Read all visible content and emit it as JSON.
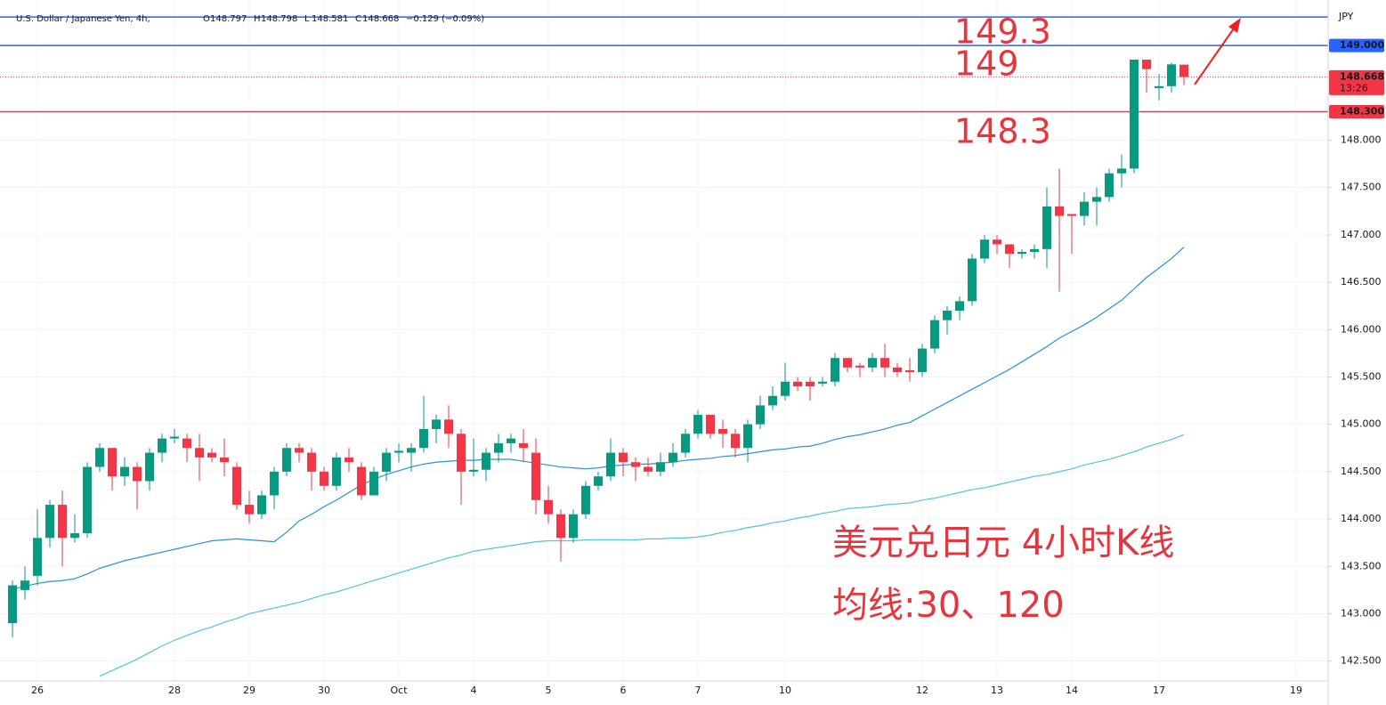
{
  "chart_data": {
    "type": "candlestick",
    "header": {
      "symbol": "U.S. Dollar / Japanese Yen, 4h,",
      "ohlc": [
        {
          "key": "O",
          "value": 148.797
        },
        {
          "key": "H",
          "value": 148.798
        },
        {
          "key": "L",
          "value": 148.581
        },
        {
          "key": "C",
          "value": 148.668
        }
      ],
      "change": "−0.129 (−0.09%)"
    },
    "axis_unit": "JPY",
    "annotations": [
      "149.3",
      "149",
      "148.3",
      "美元兑日元 4小时K线",
      "均线:30、120"
    ],
    "categories": [
      null,
      null,
      "26",
      null,
      null,
      null,
      null,
      null,
      null,
      null,
      null,
      null,
      null,
      "28",
      null,
      null,
      null,
      null,
      null,
      "29",
      null,
      null,
      null,
      null,
      null,
      "30",
      null,
      null,
      null,
      null,
      null,
      "Oct",
      null,
      null,
      null,
      null,
      null,
      "4",
      null,
      null,
      null,
      null,
      null,
      "5",
      null,
      null,
      null,
      null,
      null,
      "6",
      null,
      null,
      null,
      null,
      null,
      "7",
      null,
      null,
      null,
      null,
      null,
      null,
      "10",
      null,
      null,
      null,
      null,
      null,
      null,
      null,
      null,
      null,
      null,
      "12",
      null,
      null,
      null,
      null,
      null,
      "13",
      null,
      null,
      null,
      null,
      null,
      "14",
      null,
      null,
      null,
      null,
      null,
      null,
      "17",
      null,
      null,
      null,
      null,
      null,
      null,
      null,
      null,
      null,
      null,
      "19"
    ],
    "open": [
      142.9,
      143.25,
      143.4,
      143.8,
      144.15,
      143.8,
      143.85,
      144.55,
      144.75,
      144.45,
      144.55,
      144.4,
      144.7,
      144.85,
      144.85,
      144.75,
      144.7,
      144.65,
      144.55,
      144.15,
      144.05,
      144.25,
      144.5,
      144.75,
      144.7,
      144.5,
      144.35,
      144.65,
      144.55,
      144.25,
      144.5,
      144.7,
      144.7,
      144.75,
      144.95,
      145.05,
      144.9,
      144.5,
      144.52,
      144.7,
      144.8,
      144.8,
      144.7,
      144.2,
      144.05,
      143.8,
      144.05,
      144.35,
      144.45,
      144.7,
      144.6,
      144.55,
      144.5,
      144.6,
      144.7,
      144.9,
      145.1,
      144.95,
      144.9,
      144.75,
      145.0,
      145.2,
      145.3,
      145.45,
      145.45,
      145.43,
      145.45,
      145.7,
      145.62,
      145.6,
      145.7,
      145.6,
      145.57,
      145.55,
      145.8,
      146.1,
      146.2,
      146.3,
      146.75,
      146.95,
      146.9,
      146.8,
      146.82,
      146.85,
      147.3,
      147.22,
      147.2,
      147.35,
      147.4,
      147.65,
      147.7,
      148.85,
      148.55,
      148.57,
      148.797,
      null,
      null,
      null,
      null,
      null,
      null,
      null,
      null,
      null
    ],
    "high": [
      143.35,
      143.5,
      144.1,
      144.2,
      144.3,
      144.05,
      144.6,
      144.8,
      144.75,
      144.65,
      144.6,
      144.75,
      144.9,
      144.95,
      144.9,
      144.9,
      144.75,
      144.85,
      144.6,
      144.3,
      144.3,
      144.55,
      144.8,
      144.8,
      144.75,
      144.55,
      144.7,
      144.75,
      144.6,
      144.55,
      144.75,
      144.8,
      144.8,
      145.3,
      145.1,
      145.2,
      144.95,
      144.85,
      144.75,
      144.9,
      144.9,
      144.95,
      144.85,
      144.35,
      144.1,
      144.1,
      144.4,
      144.5,
      144.85,
      144.75,
      144.65,
      144.65,
      144.7,
      144.8,
      144.95,
      145.15,
      145.1,
      145.05,
      144.95,
      145.05,
      145.3,
      145.4,
      145.65,
      145.5,
      145.5,
      145.5,
      145.75,
      145.7,
      145.65,
      145.75,
      145.85,
      145.65,
      145.7,
      145.85,
      146.15,
      146.25,
      146.35,
      146.8,
      147.0,
      147.0,
      146.9,
      146.85,
      146.9,
      147.5,
      147.7,
      147.22,
      147.45,
      147.5,
      147.7,
      147.85,
      148.85,
      148.85,
      148.7,
      148.82,
      148.798,
      null,
      null,
      null,
      null,
      null,
      null,
      null,
      null,
      null
    ],
    "low": [
      142.75,
      143.15,
      143.3,
      143.7,
      143.5,
      143.75,
      143.8,
      144.5,
      144.3,
      144.35,
      144.1,
      144.3,
      144.6,
      144.8,
      144.6,
      144.4,
      144.6,
      144.45,
      144.1,
      143.95,
      144.0,
      144.1,
      144.45,
      144.6,
      144.3,
      144.3,
      144.3,
      144.5,
      144.2,
      144.25,
      144.4,
      144.6,
      144.5,
      144.7,
      144.8,
      144.75,
      144.15,
      144.45,
      144.4,
      144.6,
      144.7,
      144.6,
      144.05,
      143.95,
      143.55,
      143.75,
      144.0,
      144.3,
      144.4,
      144.45,
      144.4,
      144.45,
      144.45,
      144.55,
      144.65,
      144.85,
      144.85,
      144.75,
      144.65,
      144.6,
      144.95,
      145.15,
      145.25,
      145.35,
      145.25,
      145.4,
      145.4,
      145.55,
      145.5,
      145.55,
      145.5,
      145.5,
      145.45,
      145.5,
      145.75,
      145.95,
      146.1,
      146.25,
      146.7,
      146.8,
      146.65,
      146.75,
      146.75,
      146.65,
      146.4,
      146.8,
      147.1,
      147.1,
      147.35,
      147.5,
      147.65,
      148.5,
      148.42,
      148.5,
      148.581,
      null,
      null,
      null,
      null,
      null,
      null,
      null,
      null,
      null
    ],
    "close": [
      143.3,
      143.35,
      143.8,
      144.15,
      143.8,
      143.85,
      144.55,
      144.75,
      144.45,
      144.55,
      144.4,
      144.7,
      144.85,
      144.87,
      144.75,
      144.65,
      144.65,
      144.6,
      144.15,
      144.05,
      144.25,
      144.5,
      144.75,
      144.7,
      144.5,
      144.35,
      144.65,
      144.6,
      144.25,
      144.5,
      144.7,
      144.72,
      144.75,
      144.95,
      145.05,
      144.9,
      144.5,
      144.52,
      144.7,
      144.8,
      144.85,
      144.75,
      144.2,
      144.05,
      143.8,
      144.05,
      144.35,
      144.45,
      144.7,
      144.6,
      144.55,
      144.5,
      144.6,
      144.7,
      144.9,
      145.1,
      144.9,
      144.9,
      144.75,
      145.0,
      145.2,
      145.3,
      145.45,
      145.4,
      145.4,
      145.45,
      145.7,
      145.6,
      145.6,
      145.7,
      145.6,
      145.55,
      145.55,
      145.8,
      146.1,
      146.2,
      146.3,
      146.75,
      146.95,
      146.9,
      146.8,
      146.82,
      146.85,
      147.3,
      147.2,
      147.2,
      147.35,
      147.4,
      147.65,
      147.7,
      148.85,
      148.75,
      148.57,
      148.8,
      148.668,
      null,
      null,
      null,
      null,
      null,
      null,
      null,
      null,
      null
    ],
    "up_color": "#089981",
    "down_color": "#f23645",
    "series": [
      {
        "color": "#2a8fe0",
        "values": [
          143.26,
          143.29,
          143.32,
          143.34,
          143.35,
          143.37,
          143.42,
          143.48,
          143.52,
          143.56,
          143.59,
          143.62,
          143.65,
          143.68,
          143.71,
          143.74,
          143.77,
          143.78,
          143.79,
          143.78,
          143.77,
          143.76,
          143.86,
          143.98,
          144.05,
          144.13,
          144.2,
          144.28,
          144.36,
          144.42,
          144.47,
          144.51,
          144.55,
          144.58,
          144.6,
          144.61,
          144.62,
          144.62,
          144.63,
          144.63,
          144.63,
          144.61,
          144.59,
          144.57,
          144.55,
          144.54,
          144.53,
          144.54,
          144.56,
          144.57,
          144.58,
          144.58,
          144.59,
          144.6,
          144.62,
          144.63,
          144.64,
          144.66,
          144.67,
          144.69,
          144.71,
          144.73,
          144.74,
          144.76,
          144.77,
          144.8,
          144.84,
          144.87,
          144.89,
          144.92,
          144.95,
          144.99,
          145.02,
          145.09,
          145.16,
          145.23,
          145.3,
          145.37,
          145.44,
          145.51,
          145.58,
          145.66,
          145.74,
          145.82,
          145.91,
          145.98,
          146.05,
          146.13,
          146.22,
          146.31,
          146.43,
          146.55,
          146.65,
          146.75,
          146.87,
          null,
          null,
          null,
          null,
          null,
          null,
          null,
          null,
          null
        ]
      },
      {
        "color": "#4fc6d9",
        "values": [
          null,
          null,
          null,
          null,
          null,
          null,
          null,
          142.34,
          142.4,
          142.46,
          142.52,
          142.59,
          142.66,
          142.72,
          142.77,
          142.82,
          142.86,
          142.91,
          142.95,
          143.0,
          143.03,
          143.06,
          143.09,
          143.12,
          143.16,
          143.2,
          143.23,
          143.27,
          143.31,
          143.35,
          143.39,
          143.43,
          143.47,
          143.51,
          143.55,
          143.59,
          143.62,
          143.66,
          143.68,
          143.7,
          143.72,
          143.74,
          143.76,
          143.77,
          143.77,
          143.77,
          143.78,
          143.78,
          143.78,
          143.78,
          143.78,
          143.79,
          143.79,
          143.8,
          143.8,
          143.81,
          143.83,
          143.86,
          143.88,
          143.91,
          143.93,
          143.96,
          143.98,
          144.01,
          144.03,
          144.06,
          144.08,
          144.11,
          144.12,
          144.13,
          144.15,
          144.16,
          144.17,
          144.2,
          144.22,
          144.25,
          144.28,
          144.31,
          144.33,
          144.36,
          144.39,
          144.42,
          144.45,
          144.47,
          144.5,
          144.53,
          144.57,
          144.6,
          144.63,
          144.67,
          144.71,
          144.76,
          144.8,
          144.84,
          144.89,
          null,
          null,
          null,
          null,
          null,
          null,
          null,
          null,
          null
        ]
      }
    ],
    "price_lines": [
      {
        "value": 149.3,
        "color": "#2962ff"
      },
      {
        "value": 149,
        "label": "149.000",
        "color": "#2962ff"
      },
      {
        "value": 148.668,
        "countdown": "13:26",
        "color": "#f23645",
        "style": "dotted"
      },
      {
        "value": 148.3,
        "label": "148.300",
        "color": "#f23645"
      }
    ],
    "ylim": [
      142.29,
      149.48
    ],
    "yticks": [
      {
        "value": 142.5,
        "label": "142.500"
      },
      {
        "value": 143,
        "label": "143.000"
      },
      {
        "value": 143.5,
        "label": "143.500"
      },
      {
        "value": 144,
        "label": "144.000"
      },
      {
        "value": 144.5,
        "label": "144.500"
      },
      {
        "value": 145,
        "label": "145.000"
      },
      {
        "value": 145.5,
        "label": "145.500"
      },
      {
        "value": 146,
        "label": "146.000"
      },
      {
        "value": 146.5,
        "label": "146.500"
      },
      {
        "value": 147,
        "label": "147.000"
      },
      {
        "value": 147.5,
        "label": "147.500"
      },
      {
        "value": 148,
        "label": "148.000"
      }
    ],
    "grid": true
  }
}
